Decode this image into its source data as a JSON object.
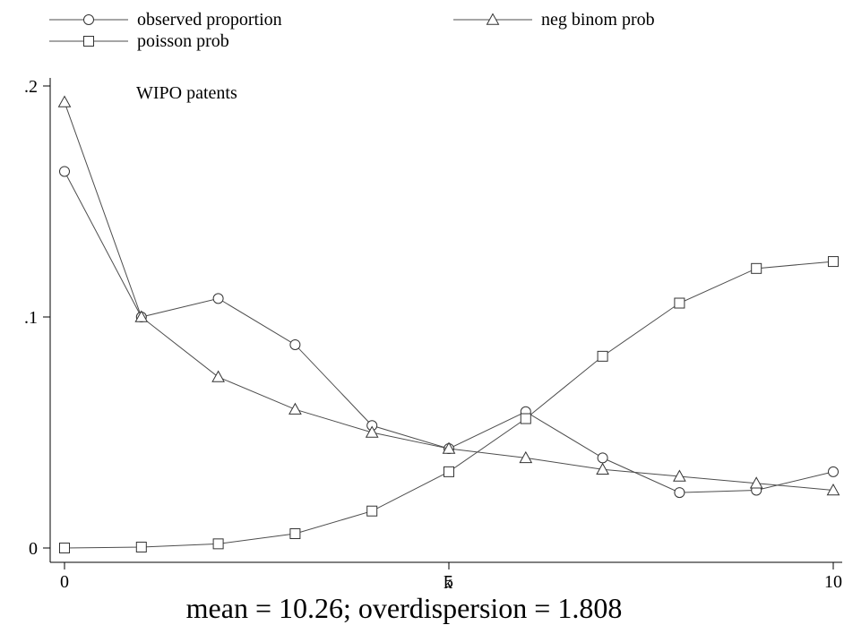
{
  "chart_data": {
    "type": "line",
    "x": [
      0,
      1,
      2,
      3,
      4,
      5,
      6,
      7,
      8,
      9,
      10
    ],
    "series": [
      {
        "name": "observed proportion",
        "marker": "circle",
        "values": [
          0.163,
          0.1,
          0.108,
          0.088,
          0.053,
          0.043,
          0.059,
          0.039,
          0.024,
          0.025,
          0.033
        ]
      },
      {
        "name": "neg binom prob",
        "marker": "triangle",
        "values": [
          0.193,
          0.1,
          0.074,
          0.06,
          0.05,
          0.043,
          0.039,
          0.034,
          0.031,
          0.028,
          0.025
        ]
      },
      {
        "name": "poisson prob",
        "marker": "square",
        "values": [
          0.0,
          0.0004,
          0.0018,
          0.0062,
          0.016,
          0.033,
          0.056,
          0.083,
          0.106,
          0.121,
          0.124
        ]
      }
    ],
    "xlabel": "k",
    "ylabel": "",
    "xlim": [
      0,
      10
    ],
    "ylim": [
      0,
      0.2
    ],
    "xticks": [
      0,
      5,
      10
    ],
    "xtick_labels": [
      "0",
      "5",
      "10"
    ],
    "yticks": [
      0,
      0.1,
      0.2
    ],
    "ytick_labels": [
      "0",
      ".1",
      ".2"
    ],
    "annotation": "WIPO patents",
    "caption": "mean = 10.26; overdispersion = 1.808",
    "legend_position": "top",
    "grid": false,
    "colors": {
      "line": "#4d4d4d",
      "marker": "#333333"
    }
  }
}
